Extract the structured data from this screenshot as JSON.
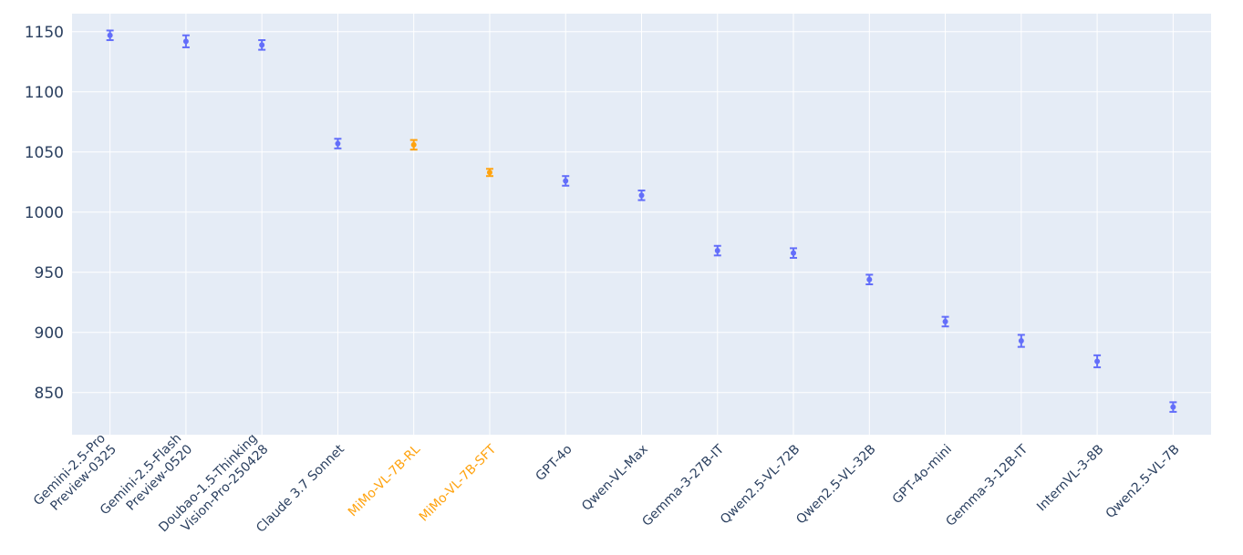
{
  "chart_data": {
    "type": "scatter",
    "title": "",
    "xlabel": "",
    "ylabel": "",
    "ylim": [
      815,
      1165
    ],
    "yticks": [
      850,
      900,
      950,
      1000,
      1050,
      1100,
      1150
    ],
    "grid": true,
    "colors": {
      "default": "#636efa",
      "highlight": "#ffa30f",
      "plot_bg": "#e5ecf6",
      "grid": "#ffffff",
      "label_text": "#2a3f5f"
    },
    "categories": [
      [
        "Gemini-2.5-Pro",
        "Preview-0325"
      ],
      [
        "Gemini-2.5-Flash",
        "Preview-0520"
      ],
      [
        "Doubao-1.5-Thinking",
        "Vision-Pro-250428"
      ],
      [
        "Claude 3.7 Sonnet"
      ],
      [
        "MiMo-VL-7B-RL"
      ],
      [
        "MiMo-VL-7B-SFT"
      ],
      [
        "GPT-4o"
      ],
      [
        "Qwen-VL-Max"
      ],
      [
        "Gemma-3-27B-IT"
      ],
      [
        "Qwen2.5-VL-72B"
      ],
      [
        "Qwen2.5-VL-32B"
      ],
      [
        "GPT-4o-mini"
      ],
      [
        "Gemma-3-12B-IT"
      ],
      [
        "InternVL-3-8B"
      ],
      [
        "Qwen2.5-VL-7B"
      ]
    ],
    "highlighted": [
      false,
      false,
      false,
      false,
      true,
      true,
      false,
      false,
      false,
      false,
      false,
      false,
      false,
      false,
      false
    ],
    "values": [
      1147,
      1142,
      1139,
      1057,
      1056,
      1033,
      1026,
      1014,
      968,
      966,
      944,
      909,
      893,
      876,
      838
    ],
    "error_upper": [
      4,
      5,
      4,
      4,
      4,
      3,
      4,
      4,
      4,
      4,
      4,
      4,
      5,
      5,
      4
    ],
    "error_lower": [
      4,
      5,
      4,
      4,
      4,
      3,
      4,
      4,
      4,
      4,
      4,
      4,
      5,
      5,
      4
    ]
  }
}
